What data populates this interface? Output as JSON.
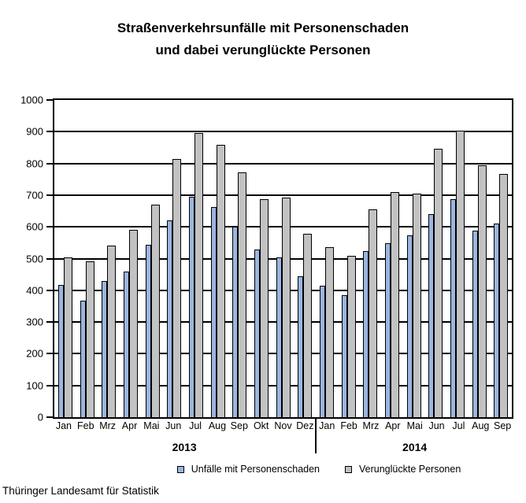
{
  "title": {
    "line1": "Straßenverkehrsunfälle mit Personenschaden",
    "line2": "und dabei verunglückte Personen"
  },
  "footer": "Thüringer Landesamt für Statistik",
  "chart_data": {
    "type": "bar",
    "title": "Straßenverkehrsunfälle mit Personenschaden und dabei verunglückte Personen",
    "categories": [
      "Jan",
      "Feb",
      "Mrz",
      "Apr",
      "Mai",
      "Jun",
      "Jul",
      "Aug",
      "Sep",
      "Okt",
      "Nov",
      "Dez",
      "Jan",
      "Feb",
      "Mrz",
      "Apr",
      "Mai",
      "Jun",
      "Jul",
      "Aug",
      "Sep"
    ],
    "groups": [
      {
        "year": "2013",
        "count": 12
      },
      {
        "year": "2014",
        "count": 9
      }
    ],
    "series": [
      {
        "name": "Unfälle mit Personenschaden",
        "color": "#9BB5DF",
        "values": [
          416,
          368,
          430,
          460,
          543,
          620,
          695,
          663,
          600,
          528,
          503,
          444,
          414,
          384,
          523,
          549,
          572,
          640,
          688,
          588,
          610
        ]
      },
      {
        "name": "Verunglückte Personen",
        "color": "#C2C2C2",
        "values": [
          505,
          492,
          540,
          590,
          670,
          813,
          895,
          858,
          772,
          688,
          692,
          578,
          536,
          509,
          654,
          710,
          704,
          845,
          903,
          795,
          768
        ]
      }
    ],
    "ylim": [
      0,
      1000
    ],
    "ytick_step": 100,
    "grid": true,
    "legend_position": "bottom"
  }
}
